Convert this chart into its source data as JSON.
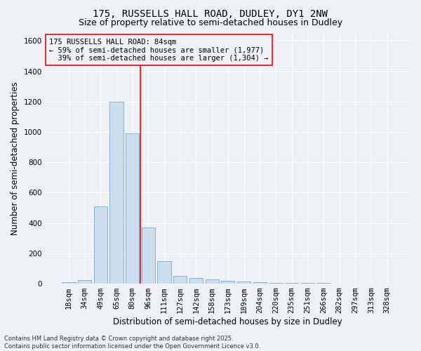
{
  "title1": "175, RUSSELLS HALL ROAD, DUDLEY, DY1 2NW",
  "title2": "Size of property relative to semi-detached houses in Dudley",
  "xlabel": "Distribution of semi-detached houses by size in Dudley",
  "ylabel": "Number of semi-detached properties",
  "bar_labels": [
    "18sqm",
    "34sqm",
    "49sqm",
    "65sqm",
    "80sqm",
    "96sqm",
    "111sqm",
    "127sqm",
    "142sqm",
    "158sqm",
    "173sqm",
    "189sqm",
    "204sqm",
    "220sqm",
    "235sqm",
    "251sqm",
    "266sqm",
    "282sqm",
    "297sqm",
    "313sqm",
    "328sqm"
  ],
  "bar_values": [
    10,
    25,
    510,
    1200,
    990,
    370,
    148,
    50,
    38,
    30,
    20,
    15,
    10,
    5,
    5,
    5,
    5,
    2,
    2,
    2,
    2
  ],
  "bar_color": "#ccdded",
  "bar_edge_color": "#7aabcc",
  "ylim": [
    0,
    1650
  ],
  "yticks": [
    0,
    200,
    400,
    600,
    800,
    1000,
    1200,
    1400,
    1600
  ],
  "property_label": "175 RUSSELLS HALL ROAD: 84sqm",
  "pct_smaller": 59,
  "pct_smaller_count": 1977,
  "pct_larger": 39,
  "pct_larger_count": 1304,
  "vline_x_index": 4.5,
  "footer_line1": "Contains HM Land Registry data © Crown copyright and database right 2025.",
  "footer_line2": "Contains public sector information licensed under the Open Government Licence v3.0.",
  "bg_color": "#eef2f6",
  "grid_color": "#ffffff",
  "title_fontsize": 10,
  "subtitle_fontsize": 9,
  "axis_label_fontsize": 8.5,
  "tick_fontsize": 7.5,
  "annotation_fontsize": 7.5,
  "footer_fontsize": 6
}
